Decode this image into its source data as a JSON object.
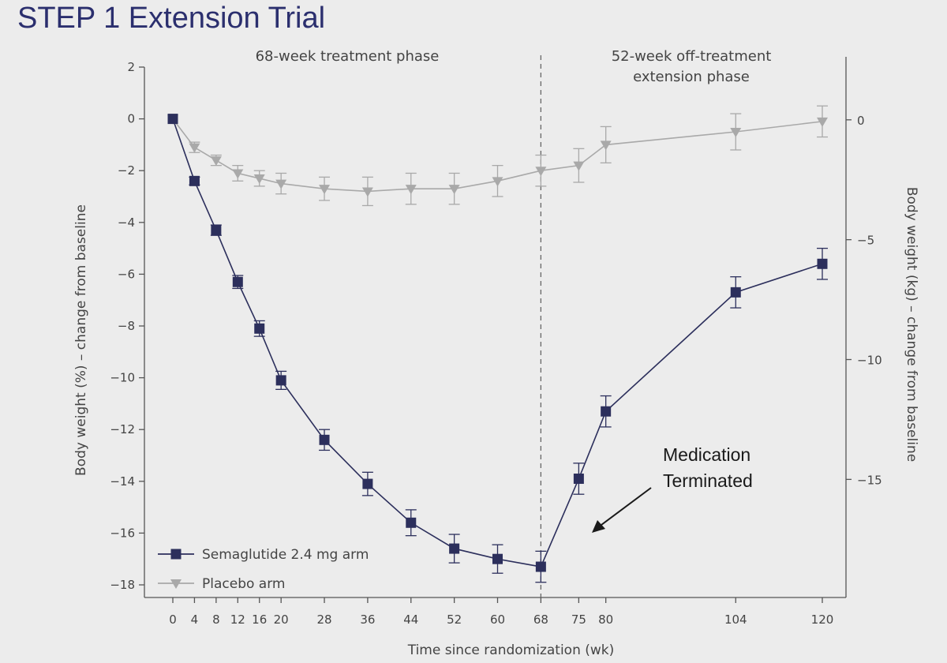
{
  "page": {
    "title": "STEP 1 Extension Trial"
  },
  "chart_data": {
    "type": "line",
    "xlabel": "Time since randomization (wk)",
    "ylabel": "Body weight (%) – change from baseline",
    "ylabel_right": "Body weight (kg) – change from baseline",
    "x_ticks": [
      "0",
      "4",
      "8",
      "12",
      "16",
      "20",
      "28",
      "36",
      "44",
      "52",
      "60",
      "68",
      "75",
      "80",
      "104",
      "120"
    ],
    "y_ticks": [
      "2",
      "0",
      "−2",
      "−4",
      "−6",
      "−8",
      "−10",
      "−12",
      "−14",
      "−16",
      "−18"
    ],
    "y_ticks_right": [
      "0",
      "−5",
      "−10",
      "−15"
    ],
    "ylim": [
      -18,
      2
    ],
    "ylim_right": [
      -19.4,
      2.2
    ],
    "phases": [
      {
        "label_lines": [
          "68-week treatment phase"
        ],
        "week_range": [
          0,
          68
        ]
      },
      {
        "label_lines": [
          "52-week off-treatment",
          "extension phase"
        ],
        "week_range": [
          68,
          120
        ]
      }
    ],
    "divider_week": 68,
    "annotation": {
      "lines": [
        "Medication",
        "Terminated"
      ]
    },
    "legend_position": "bottom-left",
    "series": [
      {
        "name": "Semaglutide 2.4 mg arm",
        "marker": "square",
        "color": "#2c2f5c",
        "x": [
          0,
          4,
          8,
          12,
          16,
          20,
          28,
          36,
          44,
          52,
          60,
          68,
          75,
          80,
          104,
          120
        ],
        "y": [
          0,
          -2.4,
          -4.3,
          -6.3,
          -8.1,
          -10.1,
          -12.4,
          -14.1,
          -15.6,
          -16.6,
          -17.0,
          -17.3,
          -13.9,
          -11.3,
          -6.7,
          -5.6
        ],
        "err": [
          0,
          0.15,
          0.2,
          0.25,
          0.3,
          0.35,
          0.4,
          0.45,
          0.5,
          0.55,
          0.55,
          0.6,
          0.6,
          0.6,
          0.6,
          0.6
        ]
      },
      {
        "name": "Placebo arm",
        "marker": "triangle-down",
        "color": "#a9a9a9",
        "x": [
          0,
          4,
          8,
          12,
          16,
          20,
          28,
          36,
          44,
          52,
          60,
          68,
          75,
          80,
          104,
          120
        ],
        "y": [
          0,
          -1.1,
          -1.6,
          -2.1,
          -2.3,
          -2.5,
          -2.7,
          -2.8,
          -2.7,
          -2.7,
          -2.4,
          -2.0,
          -1.8,
          -1.0,
          -0.5,
          -0.1
        ],
        "err": [
          0,
          0.2,
          0.2,
          0.3,
          0.3,
          0.4,
          0.45,
          0.55,
          0.6,
          0.6,
          0.6,
          0.6,
          0.65,
          0.7,
          0.7,
          0.6
        ]
      }
    ]
  }
}
